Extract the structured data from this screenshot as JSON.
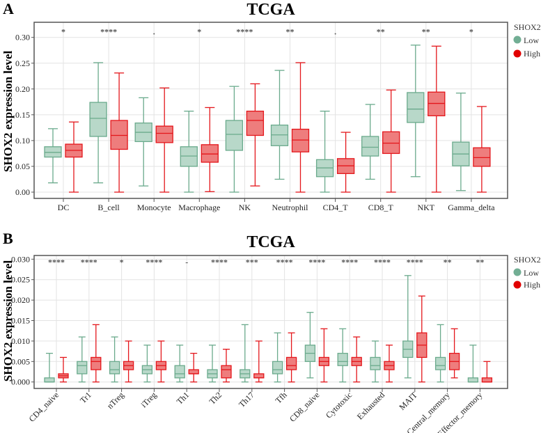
{
  "colors": {
    "low_fill": "#b8d8c9",
    "low_stroke": "#6aaa8c",
    "high_fill": "#ee7d7d",
    "high_stroke": "#e4161b",
    "legend_low": "#72ae94",
    "legend_high": "#e10000",
    "grid": "#e3e3e3",
    "axis": "#555555"
  },
  "chart_data": [
    {
      "type": "box",
      "panel": "A",
      "title": "TCGA",
      "ylabel": "SHOX2 expression level",
      "xlabel": "",
      "ylim": [
        0,
        0.32
      ],
      "yticks": [
        "0.00",
        "0.05",
        "0.10",
        "0.15",
        "0.20",
        "0.25",
        "0.30"
      ],
      "grid": true,
      "legend": {
        "title": "SHOX2",
        "placement": "right",
        "entries": [
          "Low",
          "High"
        ]
      },
      "categories": [
        "DC",
        "B_cell",
        "Monocyte",
        "Macrophage",
        "NK",
        "Neutrophil",
        "CD4_T",
        "CD8_T",
        "NKT",
        "Gamma_delta"
      ],
      "significance": [
        "*",
        "****",
        ".",
        "*",
        "****",
        "**",
        ".",
        "**",
        "**",
        "*"
      ],
      "series": [
        {
          "name": "Low",
          "boxes": [
            {
              "min": 0.018,
              "q1": 0.068,
              "median": 0.077,
              "q3": 0.088,
              "max": 0.123
            },
            {
              "min": 0.018,
              "q1": 0.108,
              "median": 0.143,
              "q3": 0.174,
              "max": 0.251
            },
            {
              "min": 0.012,
              "q1": 0.098,
              "median": 0.116,
              "q3": 0.134,
              "max": 0.183
            },
            {
              "min": 0.0,
              "q1": 0.05,
              "median": 0.07,
              "q3": 0.088,
              "max": 0.157
            },
            {
              "min": 0.0,
              "q1": 0.081,
              "median": 0.112,
              "q3": 0.139,
              "max": 0.205
            },
            {
              "min": 0.025,
              "q1": 0.09,
              "median": 0.111,
              "q3": 0.13,
              "max": 0.236
            },
            {
              "min": 0.0,
              "q1": 0.03,
              "median": 0.047,
              "q3": 0.063,
              "max": 0.157
            },
            {
              "min": 0.025,
              "q1": 0.07,
              "median": 0.087,
              "q3": 0.108,
              "max": 0.17
            },
            {
              "min": 0.03,
              "q1": 0.135,
              "median": 0.161,
              "q3": 0.193,
              "max": 0.285
            },
            {
              "min": 0.003,
              "q1": 0.051,
              "median": 0.074,
              "q3": 0.097,
              "max": 0.192
            }
          ]
        },
        {
          "name": "High",
          "boxes": [
            {
              "min": 0.0,
              "q1": 0.068,
              "median": 0.081,
              "q3": 0.093,
              "max": 0.136
            },
            {
              "min": 0.0,
              "q1": 0.083,
              "median": 0.11,
              "q3": 0.139,
              "max": 0.231
            },
            {
              "min": 0.0,
              "q1": 0.096,
              "median": 0.114,
              "q3": 0.128,
              "max": 0.202
            },
            {
              "min": 0.001,
              "q1": 0.058,
              "median": 0.074,
              "q3": 0.092,
              "max": 0.164
            },
            {
              "min": 0.012,
              "q1": 0.11,
              "median": 0.139,
              "q3": 0.157,
              "max": 0.21
            },
            {
              "min": 0.0,
              "q1": 0.078,
              "median": 0.101,
              "q3": 0.122,
              "max": 0.251
            },
            {
              "min": 0.0,
              "q1": 0.036,
              "median": 0.051,
              "q3": 0.065,
              "max": 0.116
            },
            {
              "min": 0.0,
              "q1": 0.075,
              "median": 0.095,
              "q3": 0.117,
              "max": 0.198
            },
            {
              "min": 0.0,
              "q1": 0.148,
              "median": 0.172,
              "q3": 0.194,
              "max": 0.283
            },
            {
              "min": 0.0,
              "q1": 0.05,
              "median": 0.067,
              "q3": 0.086,
              "max": 0.166
            }
          ]
        }
      ]
    },
    {
      "type": "box",
      "panel": "B",
      "title": "TCGA",
      "ylabel": "SHOX2 expression level",
      "xlabel": "",
      "ylim": [
        -0.0015,
        0.031
      ],
      "yticks": [
        "0.000",
        "0.005",
        "0.010",
        "0.015",
        "0.020",
        "0.025",
        "0.030"
      ],
      "grid": true,
      "legend": {
        "title": "SHOX2",
        "placement": "right",
        "entries": [
          "Low",
          "High"
        ]
      },
      "categories": [
        "CD4_naive",
        "Tr1",
        "nTreg",
        "iTreg",
        "Th1",
        "Th2",
        "Th17",
        "Tfh",
        "CD8_naive",
        "Cytotoxic",
        "Exhausted",
        "MAIT",
        "Central_memory",
        "Effector_memory"
      ],
      "significance": [
        "****",
        "****",
        "*",
        "****",
        "-",
        "****",
        "***",
        "****",
        "****",
        "****",
        "****",
        "****",
        "**",
        "**"
      ],
      "series": [
        {
          "name": "Low",
          "boxes": [
            {
              "min": 0.0,
              "q1": 0.0,
              "median": 0.0,
              "q3": 0.001,
              "max": 0.007
            },
            {
              "min": 0.0,
              "q1": 0.002,
              "median": 0.004,
              "q3": 0.005,
              "max": 0.011
            },
            {
              "min": 0.0,
              "q1": 0.002,
              "median": 0.003,
              "q3": 0.005,
              "max": 0.011
            },
            {
              "min": 0.0,
              "q1": 0.002,
              "median": 0.003,
              "q3": 0.004,
              "max": 0.009
            },
            {
              "min": 0.0,
              "q1": 0.001,
              "median": 0.002,
              "q3": 0.004,
              "max": 0.009
            },
            {
              "min": 0.0,
              "q1": 0.001,
              "median": 0.002,
              "q3": 0.003,
              "max": 0.009
            },
            {
              "min": 0.0,
              "q1": 0.001,
              "median": 0.002,
              "q3": 0.003,
              "max": 0.014
            },
            {
              "min": 0.0,
              "q1": 0.002,
              "median": 0.003,
              "q3": 0.005,
              "max": 0.012
            },
            {
              "min": 0.001,
              "q1": 0.005,
              "median": 0.007,
              "q3": 0.009,
              "max": 0.017
            },
            {
              "min": 0.0,
              "q1": 0.004,
              "median": 0.005,
              "q3": 0.007,
              "max": 0.013
            },
            {
              "min": 0.0,
              "q1": 0.003,
              "median": 0.004,
              "q3": 0.006,
              "max": 0.01
            },
            {
              "min": 0.001,
              "q1": 0.006,
              "median": 0.008,
              "q3": 0.01,
              "max": 0.026
            },
            {
              "min": 0.0,
              "q1": 0.003,
              "median": 0.004,
              "q3": 0.006,
              "max": 0.014
            },
            {
              "min": 0.0,
              "q1": 0.0,
              "median": 0.0,
              "q3": 0.001,
              "max": 0.009
            }
          ]
        },
        {
          "name": "High",
          "boxes": [
            {
              "min": 0.0,
              "q1": 0.001,
              "median": 0.0015,
              "q3": 0.002,
              "max": 0.006
            },
            {
              "min": 0.0,
              "q1": 0.003,
              "median": 0.005,
              "q3": 0.006,
              "max": 0.014
            },
            {
              "min": 0.0,
              "q1": 0.003,
              "median": 0.004,
              "q3": 0.005,
              "max": 0.01
            },
            {
              "min": 0.0,
              "q1": 0.003,
              "median": 0.004,
              "q3": 0.005,
              "max": 0.01
            },
            {
              "min": 0.0,
              "q1": 0.002,
              "median": 0.002,
              "q3": 0.003,
              "max": 0.007
            },
            {
              "min": 0.0,
              "q1": 0.001,
              "median": 0.003,
              "q3": 0.004,
              "max": 0.008
            },
            {
              "min": 0.0,
              "q1": 0.001,
              "median": 0.001,
              "q3": 0.002,
              "max": 0.01
            },
            {
              "min": 0.0,
              "q1": 0.003,
              "median": 0.004,
              "q3": 0.006,
              "max": 0.012
            },
            {
              "min": 0.0,
              "q1": 0.004,
              "median": 0.005,
              "q3": 0.006,
              "max": 0.013
            },
            {
              "min": 0.0,
              "q1": 0.004,
              "median": 0.005,
              "q3": 0.006,
              "max": 0.011
            },
            {
              "min": 0.0,
              "q1": 0.003,
              "median": 0.004,
              "q3": 0.005,
              "max": 0.009
            },
            {
              "min": 0.0,
              "q1": 0.006,
              "median": 0.009,
              "q3": 0.012,
              "max": 0.021
            },
            {
              "min": 0.001,
              "q1": 0.003,
              "median": 0.005,
              "q3": 0.007,
              "max": 0.013
            },
            {
              "min": 0.0,
              "q1": 0.0,
              "median": 0.0,
              "q3": 0.001,
              "max": 0.005
            }
          ]
        }
      ]
    }
  ]
}
